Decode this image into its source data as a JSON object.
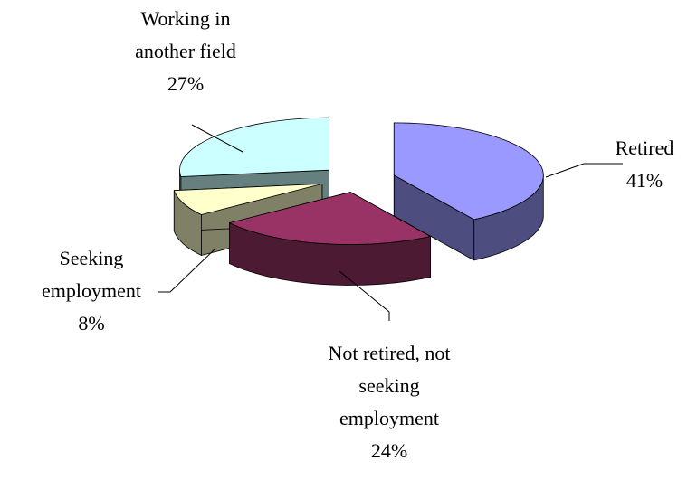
{
  "chart_data": {
    "type": "pie",
    "three_d": true,
    "exploded": true,
    "categories": [
      "Retired",
      "Not retired, not seeking employment",
      "Seeking employment",
      "Working in another field"
    ],
    "values": [
      41,
      24,
      8,
      27
    ],
    "value_labels": [
      "41%",
      "24%",
      "8%",
      "27%"
    ],
    "colors": [
      "#9999ff",
      "#993366",
      "#ffffcc",
      "#ccffff"
    ]
  }
}
